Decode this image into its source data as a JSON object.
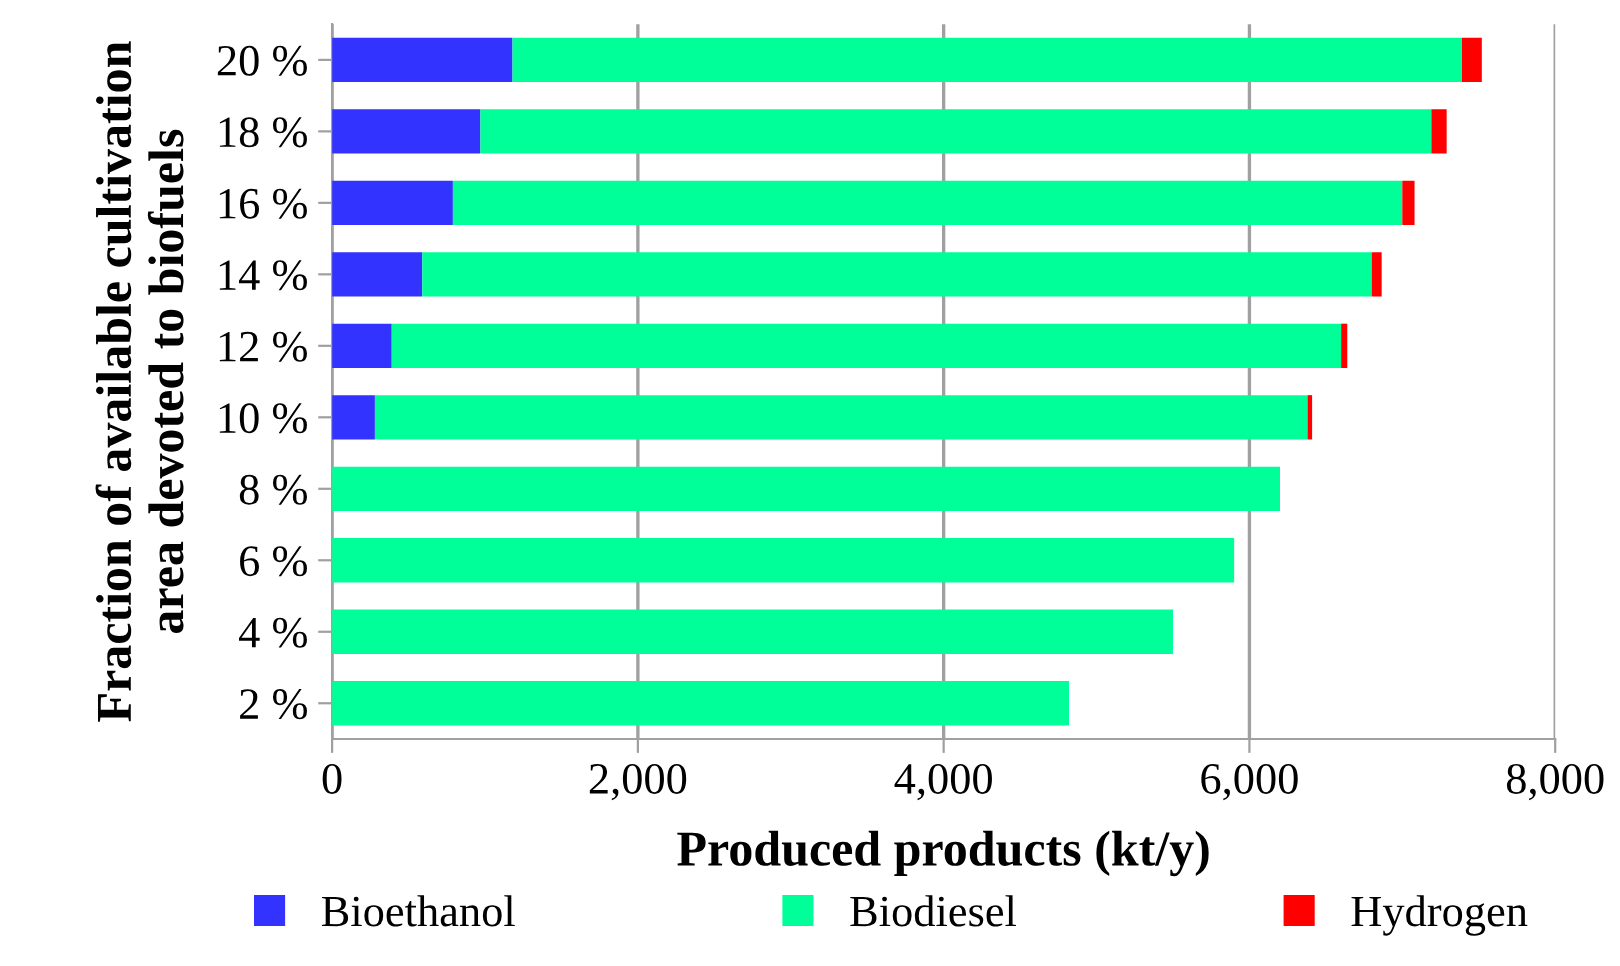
{
  "chart_data": {
    "type": "bar",
    "orientation": "horizontal",
    "stacked": true,
    "xlabel": "Produced products (kt/y)",
    "ylabel": "Fraction of available cultivation\narea devoted to biofuels",
    "categories": [
      "20 %",
      "18 %",
      "16 %",
      "14 %",
      "12 %",
      "10 %",
      "8 %",
      "6 %",
      "4 %",
      "2 %"
    ],
    "series": [
      {
        "name": "Bioethanol",
        "color": "#3333ff",
        "values": [
          1180,
          970,
          790,
          590,
          390,
          280,
          0,
          0,
          0,
          0
        ]
      },
      {
        "name": "Biodiesel",
        "color": "#00ff99",
        "values": [
          6210,
          6220,
          6210,
          6210,
          6210,
          6100,
          6200,
          5900,
          5500,
          4820
        ]
      },
      {
        "name": "Hydrogen",
        "color": "#ff0000",
        "values": [
          130,
          100,
          80,
          65,
          40,
          30,
          0,
          0,
          0,
          0
        ]
      }
    ],
    "xlim": [
      0,
      8000
    ],
    "xticks": [
      {
        "value": 0,
        "label": "0"
      },
      {
        "value": 2000,
        "label": "2,000"
      },
      {
        "value": 4000,
        "label": "4,000"
      },
      {
        "value": 6000,
        "label": "6,000"
      },
      {
        "value": 8000,
        "label": "8,000"
      }
    ],
    "grid": "x",
    "legend": "bottom"
  }
}
